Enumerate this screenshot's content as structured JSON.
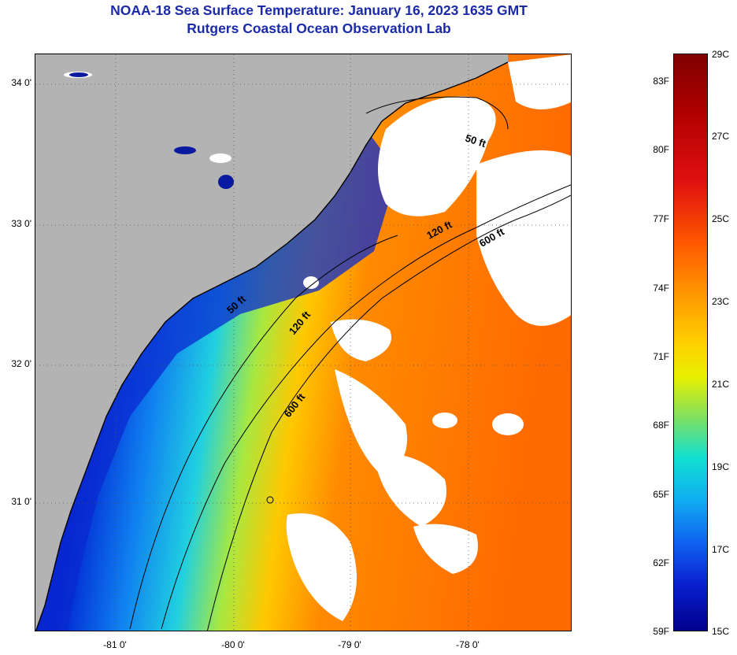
{
  "header": {
    "title": "NOAA-18 Sea Surface Temperature:  January 16, 2023 1635 GMT",
    "subtitle": "Rutgers Coastal Ocean Observation Lab"
  },
  "map": {
    "lat_labels": [
      "34 0'",
      "33 0'",
      "32 0'",
      "31 0'"
    ],
    "lon_labels": [
      "-81 0'",
      "-80 0'",
      "-79 0'",
      "-78 0'"
    ],
    "contours": [
      "50 ft",
      "120 ft",
      "600 ft"
    ],
    "colors": {
      "land": "#b3b3b3",
      "cloud": "#ffffff",
      "cold": "#00008b",
      "warm": "#ff6a00"
    }
  },
  "colorbar": {
    "fahrenheit": [
      "83F",
      "80F",
      "77F",
      "74F",
      "71F",
      "68F",
      "65F",
      "62F",
      "59F"
    ],
    "celsius": [
      "29C",
      "27C",
      "25C",
      "23C",
      "21C",
      "19C",
      "17C",
      "15C"
    ]
  }
}
